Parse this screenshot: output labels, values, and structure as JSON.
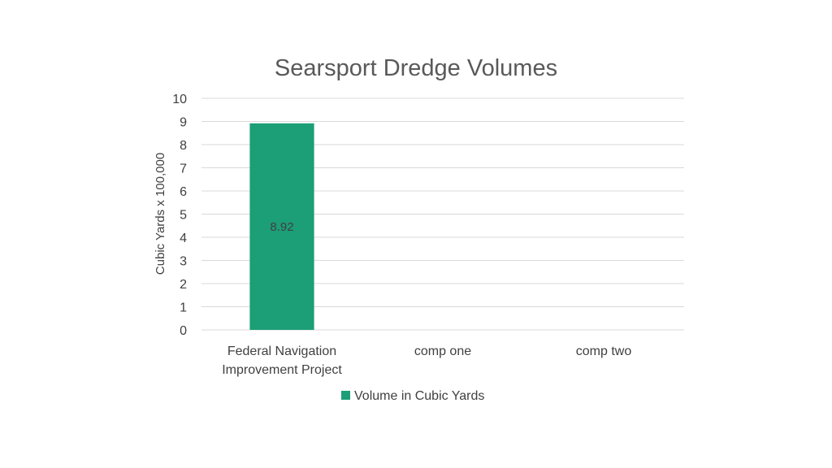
{
  "chart_data": {
    "type": "bar",
    "title": "Searsport Dredge Volumes",
    "ylabel": "Cubic Yards x 100,000",
    "xlabel": "",
    "ylim": [
      0,
      10
    ],
    "yticks": [
      0,
      1,
      2,
      3,
      4,
      5,
      6,
      7,
      8,
      9,
      10
    ],
    "grid": true,
    "categories": [
      [
        "Federal Navigation",
        "Improvement Project"
      ],
      [
        "comp one"
      ],
      [
        "comp two"
      ]
    ],
    "series": [
      {
        "name": "Volume in Cubic Yards",
        "color": "#1c9e77",
        "values": [
          8.92,
          null,
          null
        ],
        "data_labels": [
          "8.92",
          "",
          ""
        ]
      }
    ],
    "legend": "bottom"
  }
}
